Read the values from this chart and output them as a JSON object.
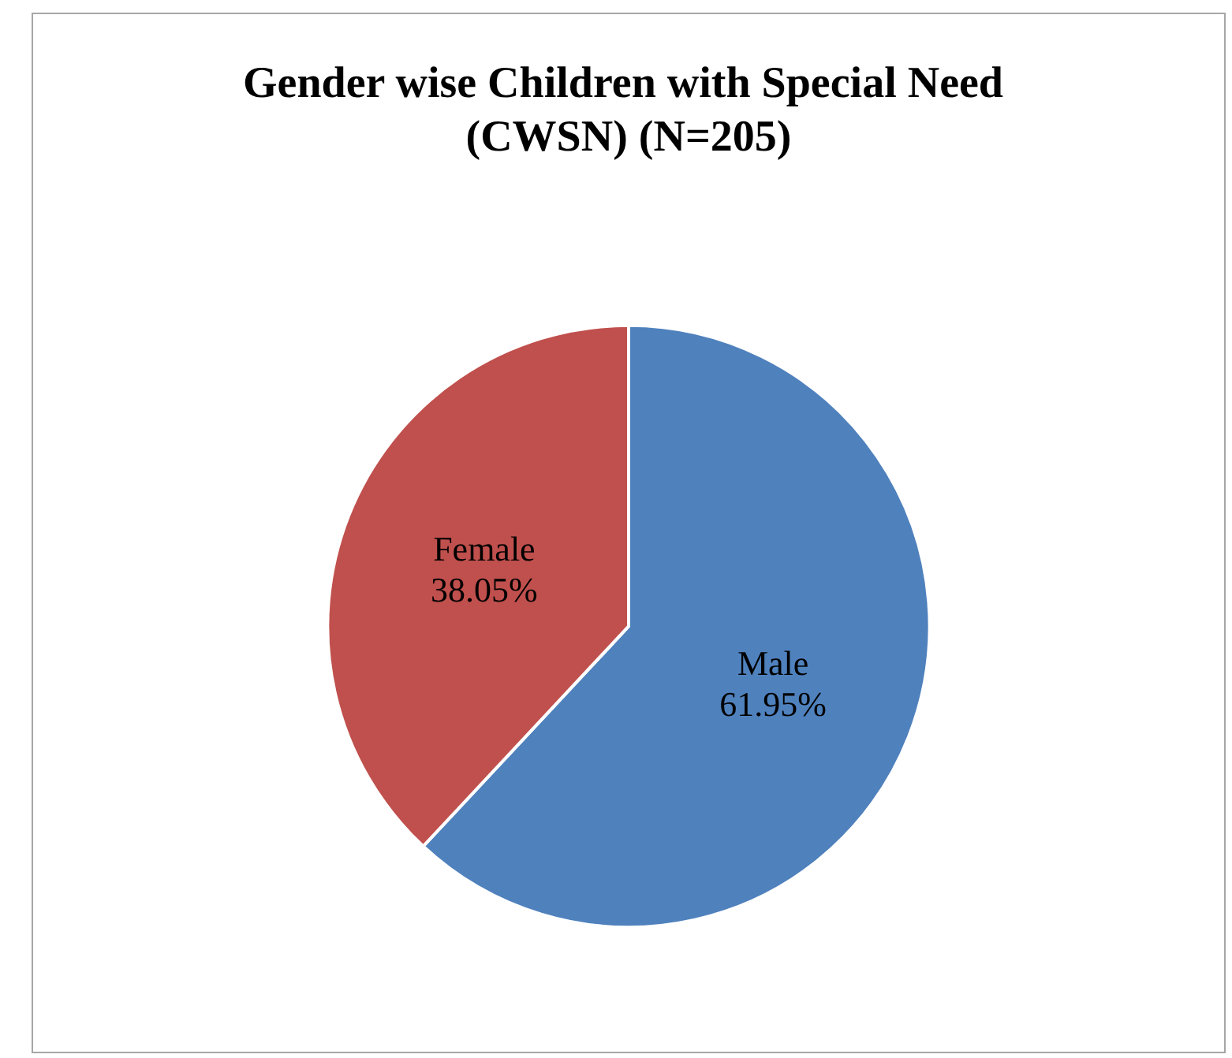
{
  "chart_data": {
    "type": "pie",
    "title": "Gender wise Children with Special Need (CWSN) (N=205)",
    "categories": [
      "Male",
      "Female"
    ],
    "values": [
      61.95,
      38.05
    ],
    "colors": [
      "#4f81bd",
      "#c0504d"
    ],
    "value_labels": [
      "61.95%",
      "38.05%"
    ]
  }
}
